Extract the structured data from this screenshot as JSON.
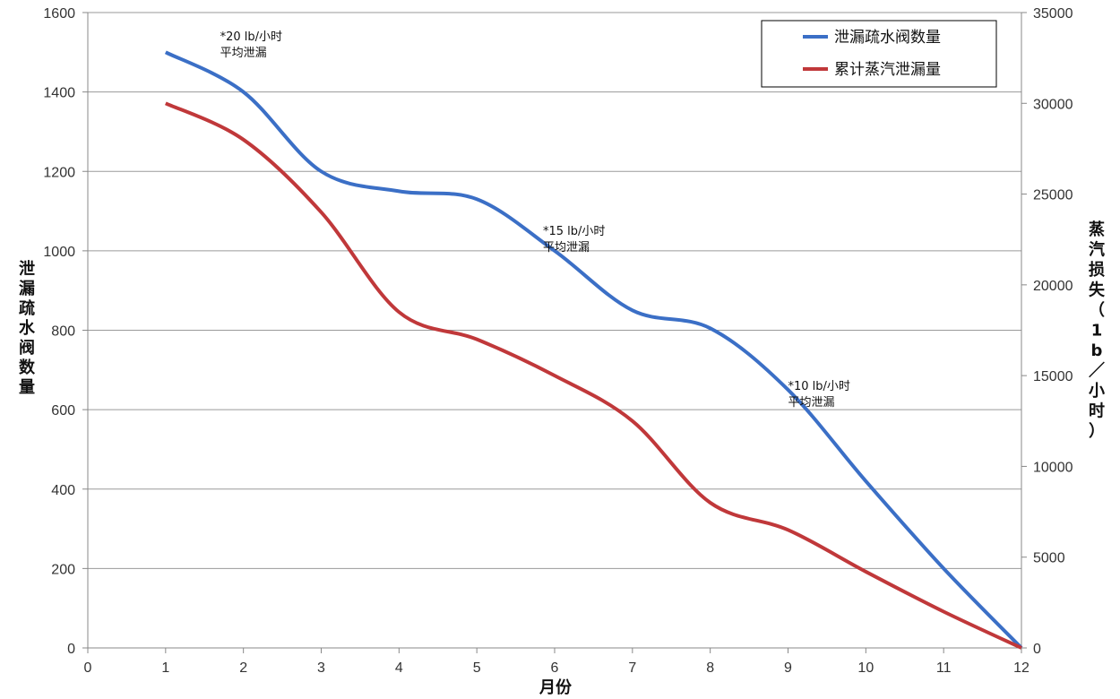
{
  "chart_data": {
    "type": "line",
    "xlabel": "月份",
    "ylabel_left": "泄漏疏水阀数量",
    "ylabel_right": "蒸汽损失（1b／小时）",
    "xlim": [
      0,
      12
    ],
    "ylim_left": [
      0,
      1600
    ],
    "ylim_right": [
      0,
      35000
    ],
    "x_ticks": [
      0,
      1,
      2,
      3,
      4,
      5,
      6,
      7,
      8,
      9,
      10,
      11,
      12
    ],
    "y_left_ticks": [
      0,
      200,
      400,
      600,
      800,
      1000,
      1200,
      1400,
      1600
    ],
    "y_right_ticks": [
      0,
      5000,
      10000,
      15000,
      20000,
      25000,
      30000,
      35000
    ],
    "grid": "horizontal",
    "legend_position": "top-right",
    "series": [
      {
        "name": "泄漏疏水阀数量",
        "axis": "left",
        "color": "#3b6fc6",
        "x": [
          1,
          2,
          3,
          4,
          5,
          6,
          7,
          8,
          9,
          10,
          11,
          12
        ],
        "values": [
          1500,
          1400,
          1200,
          1150,
          1130,
          1000,
          850,
          805,
          650,
          420,
          200,
          0
        ]
      },
      {
        "name": "累计蒸汽泄漏量",
        "axis": "right",
        "color": "#c0383a",
        "x": [
          1,
          2,
          3,
          4,
          5,
          6,
          7,
          8,
          9,
          10,
          11,
          12
        ],
        "values": [
          30000,
          28000,
          24000,
          18500,
          17000,
          15000,
          12500,
          8000,
          6500,
          4200,
          2000,
          0
        ]
      }
    ],
    "annotations": [
      {
        "x": 1.7,
        "y_left": 1530,
        "lines": [
          "*20 lb/小时",
          "平均泄漏"
        ]
      },
      {
        "x": 5.85,
        "y_left": 1040,
        "lines": [
          "*15 lb/小时",
          "平均泄漏"
        ]
      },
      {
        "x": 9.0,
        "y_left": 650,
        "lines": [
          "*10 lb/小时",
          "平均泄漏"
        ]
      }
    ]
  }
}
